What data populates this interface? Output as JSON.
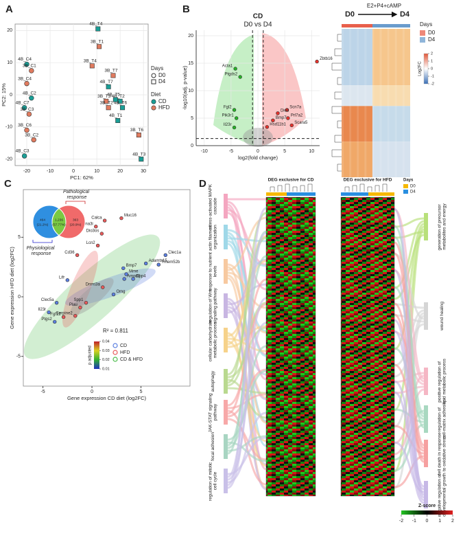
{
  "chart_data": [
    {
      "type": "scatter",
      "panel": "A",
      "xlabel": "PC1: 62%",
      "ylabel": "PC2: 15%",
      "xlim": [
        -25,
        32
      ],
      "ylim": [
        -22,
        22
      ],
      "xticks": [
        -20,
        -10,
        0,
        10,
        20,
        30
      ],
      "yticks": [
        -20,
        -10,
        0,
        10,
        20
      ],
      "grid": true,
      "legend": {
        "shape_title": "Days",
        "shapes": [
          "D0",
          "D4"
        ],
        "color_title": "Diet"
      },
      "series": [
        {
          "name": "CD",
          "color": "#1a9e96",
          "labels": [
            "4B_T4",
            "4B_C4",
            "4B_C2",
            "4B_C7",
            "4B_C3",
            "4B_T7",
            "4B_T2",
            "4B_T6",
            "4B_T5",
            "4B_T1",
            "4B_T3"
          ],
          "x": [
            10.5,
            -20,
            -18,
            -21,
            -21,
            15,
            20,
            21,
            18,
            19,
            29
          ],
          "y": [
            20.5,
            9.5,
            -1,
            -4,
            -19,
            2.5,
            -2,
            -4,
            -1.5,
            -8,
            -20
          ],
          "days": [
            "D4",
            "D0",
            "D0",
            "D0",
            "D0",
            "D4",
            "D4",
            "D4",
            "D4",
            "D4",
            "D4"
          ]
        },
        {
          "name": "HFD",
          "color": "#e07b5f",
          "labels": [
            "3B_T1",
            "3B_T4",
            "3B_C1",
            "3B_C4",
            "3B_C3",
            "3B_C6",
            "3B_C2",
            "3B_T7",
            "3B_T3",
            "3B_T2",
            "3B_T6"
          ],
          "x": [
            11,
            8,
            -18,
            -20,
            -19,
            -20,
            -17,
            17,
            14,
            15,
            28
          ],
          "y": [
            15,
            9,
            7.5,
            3.5,
            -6,
            -11,
            -14,
            6,
            -2,
            -4,
            -12.5
          ],
          "days": [
            "D4",
            "D4",
            "D0",
            "D0",
            "D0",
            "D0",
            "D0",
            "D4",
            "D4",
            "D4",
            "D4"
          ]
        }
      ]
    },
    {
      "type": "scatter",
      "panel": "B",
      "title": "CD",
      "subtitle": "D0 vs D4",
      "xlabel": "log2(fold change)",
      "ylabel": "-log10(adj. p-value)",
      "xlim": [
        -11.5,
        11.5
      ],
      "ylim": [
        0,
        21
      ],
      "xticks": [
        -10,
        -5,
        0,
        5,
        10
      ],
      "yticks": [
        0,
        5,
        10,
        15,
        20
      ],
      "grid": true,
      "hline": 1.3,
      "vlines": [
        -1,
        1
      ],
      "series": [
        {
          "color": "#27b327",
          "labels": [
            "Acta1",
            "Ptgds2",
            "Fgl2",
            "Pik3r1",
            "Il23r"
          ],
          "x": [
            -4.2,
            -3.3,
            -4.4,
            -4,
            -4.4
          ],
          "y": [
            14,
            12.5,
            6.5,
            5,
            3.3
          ]
        },
        {
          "color": "#e8322c",
          "labels": [
            "Zbtb16",
            "Scn7a",
            "Dio3",
            "Prl7a2",
            "Bmp7",
            "Hsd11b1",
            "Scara5"
          ],
          "x": [
            11,
            5.4,
            3.7,
            5.6,
            2.8,
            1.7,
            6.3
          ],
          "y": [
            15.3,
            6.5,
            5.9,
            5,
            4.6,
            3.4,
            3.7
          ]
        }
      ]
    },
    {
      "type": "heatmap",
      "treatment": "E2+P4+cAMP",
      "columns": [
        "D0",
        "D4"
      ],
      "column_colors": [
        "#e8604c",
        "#6a9ccd"
      ],
      "legend_title": "Days",
      "colorbar_label": "Log2FC",
      "colorbar_ticks": [
        2,
        1,
        0,
        -1,
        -2
      ],
      "colorbar_colors": [
        "#e0583a",
        "#ffffff",
        "#3b6fb6"
      ]
    },
    {
      "type": "scatter",
      "panel": "C",
      "xlabel": "Gene expression CD diet (log2FC)",
      "ylabel": "Gene expression  HFD diet (log2FC)",
      "xlim": [
        -7,
        10
      ],
      "ylim": [
        -7.5,
        9
      ],
      "xticks": [
        -5,
        0,
        5
      ],
      "yticks": [
        -5,
        0,
        5
      ],
      "grid": false,
      "annotation": "R² = 0.811",
      "venn": {
        "top": "Pathological response",
        "bottom": "Physiological response",
        "left": [
          "464",
          "(21.2%)"
        ],
        "middle": [
          "1,236",
          "(57.77%)"
        ],
        "right": [
          "363",
          "(20.9%)"
        ],
        "colors": [
          "#2f8fe0",
          "#f06a6a",
          "#7ac943"
        ]
      },
      "colorbar_label": "p adjusted",
      "colorbar_ticks": [
        0.04,
        0.03,
        0.02,
        0.01
      ],
      "colorbar_colors": [
        "#c0202a",
        "#d8d020",
        "#30b030",
        "#2030c0"
      ],
      "series": [
        {
          "name": "CD",
          "color": "#5b7fe0",
          "label_color": "#1c2a9a",
          "labels": [
            "Adamts15",
            "Clec1a",
            "Tmem52b",
            "Mme",
            "Ampd3",
            "Dpp4",
            "Bmp7",
            "Omg",
            "Lifr",
            "Clec5a",
            "Il23r",
            "Ptgs2"
          ],
          "x": [
            5.5,
            7.5,
            6.8,
            3.5,
            3.3,
            4.2,
            3.2,
            2.2,
            -2.5,
            -3.6,
            -4.4,
            -3.8
          ],
          "y": [
            2.8,
            3.5,
            2.7,
            1.9,
            1.5,
            1.5,
            2.4,
            0.2,
            1.4,
            -0.5,
            -1.3,
            -2.1
          ]
        },
        {
          "name": "HFD",
          "color": "#e85a5a",
          "label_color": "#a01818",
          "labels": [
            "Muc16",
            "Calca",
            "Serpina3i",
            "Dio3os",
            "Lcn2",
            "Cd36",
            "Dnmt3a",
            "Spp1",
            "Plau",
            "Serpine2",
            "Fgf12"
          ],
          "x": [
            3.0,
            1.3,
            0.4,
            1.0,
            0.6,
            -1.5,
            1.1,
            -0.6,
            -1.2,
            -1.7,
            -2.9
          ],
          "y": [
            6.6,
            6.4,
            5.9,
            5.3,
            4.3,
            3.5,
            0.8,
            -0.5,
            -0.9,
            -1.6,
            -1.7
          ]
        },
        {
          "name": "CD & HFD",
          "color": "#4cbc4c",
          "labels": [],
          "x": [],
          "y": []
        }
      ]
    },
    {
      "type": "heatmap",
      "panel": "D",
      "titles": [
        "DEG exclusive for CD",
        "DEG exclusive for HFD"
      ],
      "columns": [
        "D0",
        "D4"
      ],
      "column_colors": [
        "#f5b800",
        "#2a8fe0"
      ],
      "legend_title": "Days",
      "colorbar_label": "Z-score",
      "colorbar_ticks": [
        -2,
        -1,
        0,
        1,
        2
      ],
      "colorbar_colors": [
        "#22c322",
        "#000000",
        "#e02020"
      ],
      "pathways_left": [
        "stress-activated MAPK cascade",
        "actin filament organization",
        "response to nutrient levels",
        "regulation of Wnt signaling pathway",
        "cellular carbohydrate metabolic process",
        "autophagy",
        "JAK-STAT signaling pathway",
        "focal adhesion",
        "regulation of mitotic cell cycle"
      ],
      "pathways_right": [
        "generation of precursor metabolites and energy",
        "wound healing",
        "positive regulation of lipid metabolic process",
        "regulation of cell-matrix adhesion",
        "cell death in response to oxidative stress",
        "negative regulation of developmental growth"
      ]
    }
  ]
}
